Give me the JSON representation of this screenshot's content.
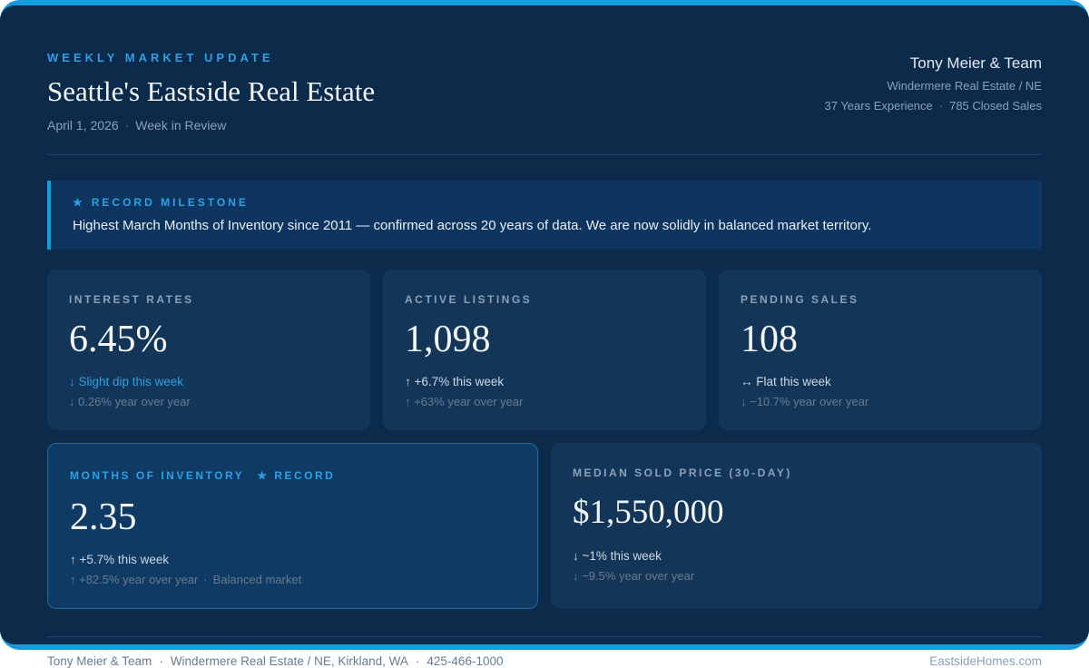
{
  "sep": "·",
  "header": {
    "eyebrow": "WEEKLY MARKET UPDATE",
    "title": "Seattle's Eastside Real Estate",
    "date": "April 1, 2026",
    "subtitle": "Week in Review",
    "team": {
      "name": "Tony Meier & Team",
      "brokerage": "Windermere Real Estate / NE",
      "experience": "37 Years Experience",
      "closed_sales": "785 Closed Sales"
    }
  },
  "milestone": {
    "star": "★",
    "label": "RECORD MILESTONE",
    "text": "Highest March Months of Inventory since 2011 — confirmed across 20 years of data. We are now solidly in balanced market territory."
  },
  "stats": [
    {
      "label": "INTEREST RATES",
      "value": "6.45%",
      "week": "↓ Slight dip this week",
      "yoy": "↓ 0.26% year over year"
    },
    {
      "label": "ACTIVE LISTINGS",
      "value": "1,098",
      "week": "↑ +6.7% this week",
      "yoy": "↑ +63% year over year"
    },
    {
      "label": "PENDING SALES",
      "value": "108",
      "week": "↔ Flat this week",
      "yoy": "↓ −10.7% year over year"
    }
  ],
  "featured": [
    {
      "label": "MONTHS OF INVENTORY",
      "badge": "★ RECORD",
      "value": "2.35",
      "week": "↑ +5.7% this week",
      "yoy": "↑ +82.5% year over year",
      "note": "Balanced market"
    },
    {
      "label": "MEDIAN SOLD PRICE (30-DAY)",
      "value": "$1,550,000",
      "week": "↓ ~1% this week",
      "yoy": "↓ −9.5% year over year"
    }
  ],
  "footer": {
    "team": "Tony Meier & Team",
    "office": "Windermere Real Estate / NE, Kirkland, WA",
    "phone": "425-466-1000",
    "website": "EastsideHomes.com"
  },
  "colors": {
    "frame-blue": "#149adf",
    "page-bg": "#0c2a4a",
    "card-bg": "#133557",
    "banner-bg": "#0d355f",
    "feature-bg": "#0e3a63",
    "feature-border": "#1f6ba3",
    "accent": "#2fa0e4",
    "text-bright": "#f3f6f9",
    "text-light": "#ccd8e4",
    "text-mid": "#8ba1b8",
    "text-dim": "#667c93",
    "divider": "#23486d"
  }
}
